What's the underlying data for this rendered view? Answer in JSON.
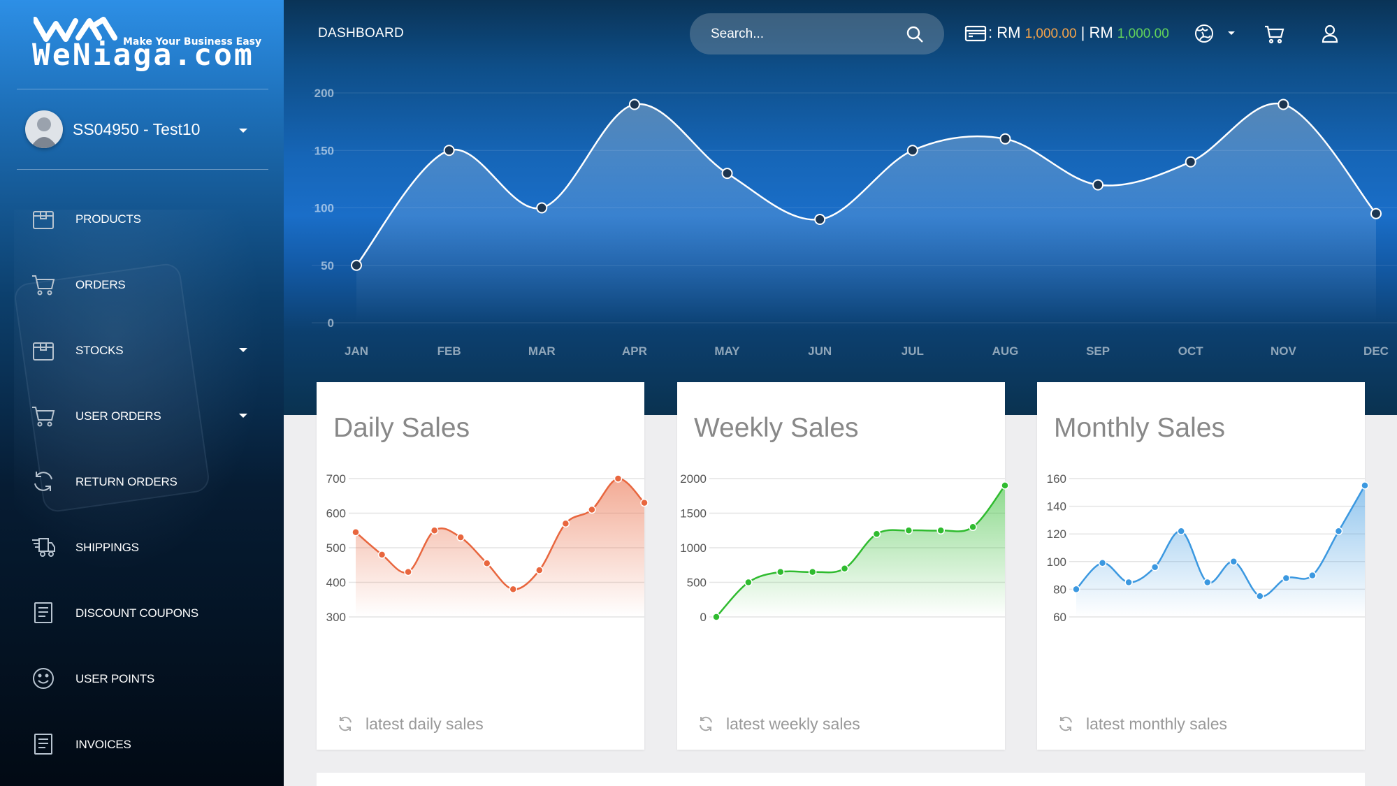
{
  "logo": {
    "tagline": "Make Your Business Easy",
    "name": "WeNiaga.com"
  },
  "user": {
    "name": "SS04950 - Test10"
  },
  "sidebar": {
    "items": [
      {
        "label": "PRODUCTS",
        "icon": "box-icon",
        "has_caret": false
      },
      {
        "label": "ORDERS",
        "icon": "cart-icon",
        "has_caret": false
      },
      {
        "label": "STOCKS",
        "icon": "box-icon",
        "has_caret": true
      },
      {
        "label": "USER ORDERS",
        "icon": "cart-icon",
        "has_caret": true
      },
      {
        "label": "RETURN ORDERS",
        "icon": "refresh-icon",
        "has_caret": false
      },
      {
        "label": "SHIPPINGS",
        "icon": "truck-icon",
        "has_caret": false
      },
      {
        "label": "DISCOUNT COUPONS",
        "icon": "document-icon",
        "has_caret": false
      },
      {
        "label": "USER POINTS",
        "icon": "smiley-icon",
        "has_caret": false
      },
      {
        "label": "INVOICES",
        "icon": "document-icon",
        "has_caret": false
      }
    ]
  },
  "topbar": {
    "title": "DASHBOARD",
    "search_placeholder": "Search...",
    "wallet_prefix": ": RM ",
    "wallet_amount_1": "1,000.00",
    "wallet_separator": " | RM ",
    "wallet_amount_2": "1,000.00"
  },
  "colors": {
    "daily": "#e8663e",
    "weekly": "#2fbb2f",
    "monthly": "#3b98e0",
    "orange_amount": "#f5a34a",
    "green_amount": "#62d35a"
  },
  "cards": [
    {
      "title": "Daily Sales",
      "footer": "latest daily sales"
    },
    {
      "title": "Weekly Sales",
      "footer": "latest weekly sales"
    },
    {
      "title": "Monthly Sales",
      "footer": "latest monthly sales"
    }
  ],
  "chart_data": [
    {
      "type": "line",
      "x": [
        "JAN",
        "FEB",
        "MAR",
        "APR",
        "MAY",
        "JUN",
        "JUL",
        "AUG",
        "SEP",
        "OCT",
        "NOV",
        "DEC"
      ],
      "y_ticks": [
        0,
        50,
        100,
        150,
        200
      ],
      "ylim": [
        0,
        200
      ],
      "series": [
        {
          "values": [
            50,
            150,
            100,
            190,
            130,
            90,
            150,
            160,
            120,
            140,
            190,
            95
          ]
        }
      ]
    },
    {
      "type": "area",
      "y_ticks": [
        300,
        400,
        500,
        600,
        700
      ],
      "ylim": [
        300,
        700
      ],
      "series": [
        {
          "values": [
            545,
            480,
            430,
            550,
            530,
            455,
            380,
            435,
            570,
            610,
            700,
            630
          ]
        }
      ]
    },
    {
      "type": "area",
      "y_ticks": [
        0,
        500,
        1000,
        1500,
        2000
      ],
      "ylim": [
        0,
        2000
      ],
      "series": [
        {
          "values": [
            0,
            500,
            650,
            650,
            700,
            1200,
            1250,
            1250,
            1300,
            1900
          ]
        }
      ]
    },
    {
      "type": "area",
      "y_ticks": [
        60,
        80,
        100,
        120,
        140,
        160
      ],
      "ylim": [
        60,
        160
      ],
      "series": [
        {
          "values": [
            80,
            99,
            85,
            96,
            122,
            85,
            100,
            75,
            88,
            90,
            122,
            155
          ]
        }
      ]
    }
  ]
}
